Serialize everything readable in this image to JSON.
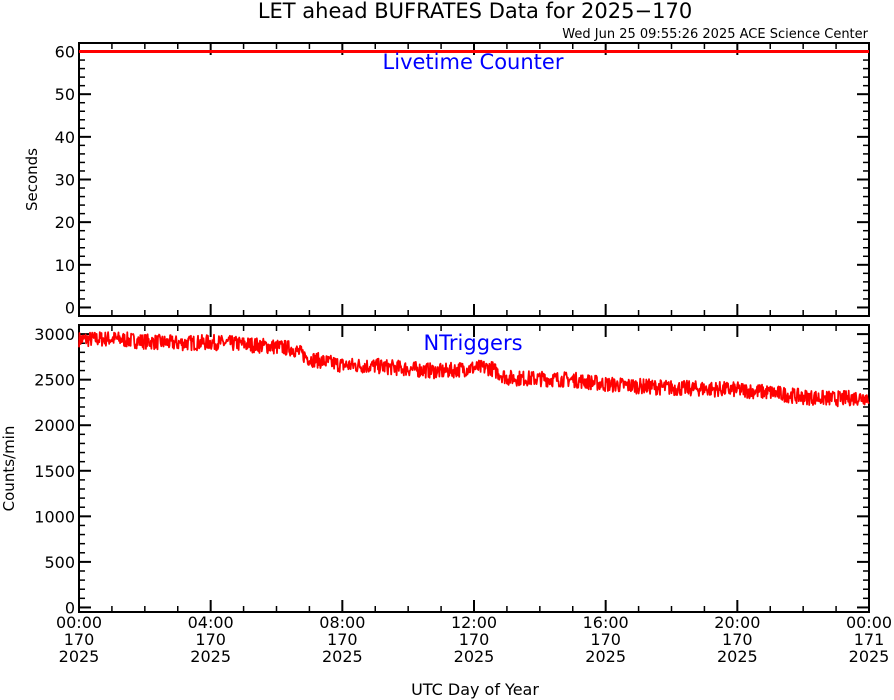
{
  "title": "LET ahead BUFRATES Data for 2025−170",
  "timestamp": "Wed Jun 25 09:55:26 2025 ACE Science Center",
  "xlabel": "UTC Day of Year",
  "colors": {
    "series": "#ff0000",
    "panel_label": "#0000ff",
    "axes": "#000000"
  },
  "x_ticks": [
    {
      "hour": 0,
      "time": "00:00",
      "doy": "170",
      "year": "2025"
    },
    {
      "hour": 4,
      "time": "04:00",
      "doy": "170",
      "year": "2025"
    },
    {
      "hour": 8,
      "time": "08:00",
      "doy": "170",
      "year": "2025"
    },
    {
      "hour": 12,
      "time": "12:00",
      "doy": "170",
      "year": "2025"
    },
    {
      "hour": 16,
      "time": "16:00",
      "doy": "170",
      "year": "2025"
    },
    {
      "hour": 20,
      "time": "20:00",
      "doy": "170",
      "year": "2025"
    },
    {
      "hour": 24,
      "time": "00:00",
      "doy": "171",
      "year": "2025"
    }
  ],
  "chart_data": [
    {
      "type": "line",
      "panel_label": "Livetime Counter",
      "ylabel": "Seconds",
      "xlim": [
        0,
        24
      ],
      "ylim": [
        -2,
        62
      ],
      "yticks": [
        0,
        10,
        20,
        30,
        40,
        50,
        60
      ],
      "series": [
        {
          "x": [
            0,
            24
          ],
          "values": [
            60,
            60
          ]
        }
      ]
    },
    {
      "type": "line",
      "panel_label": "NTriggers",
      "ylabel": "Counts/min",
      "xlim": [
        0,
        24
      ],
      "ylim": [
        -50,
        3100
      ],
      "yticks": [
        0,
        500,
        1000,
        1500,
        2000,
        2500,
        3000
      ],
      "series": [
        {
          "x": [
            0,
            1,
            2,
            3,
            4,
            5,
            6,
            6.5,
            7,
            8,
            9,
            10,
            11,
            12,
            12.5,
            13,
            14,
            15,
            16,
            17,
            18,
            19,
            20,
            21,
            22,
            23,
            24
          ],
          "values": [
            2940,
            2950,
            2920,
            2900,
            2910,
            2890,
            2860,
            2840,
            2730,
            2660,
            2650,
            2620,
            2590,
            2630,
            2630,
            2520,
            2510,
            2500,
            2450,
            2430,
            2410,
            2400,
            2390,
            2360,
            2310,
            2290,
            2310
          ]
        }
      ]
    }
  ]
}
